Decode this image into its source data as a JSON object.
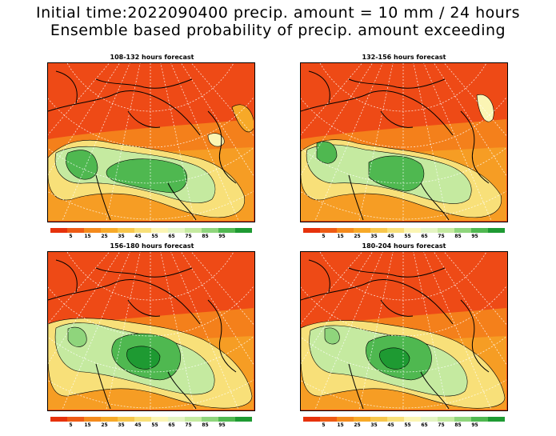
{
  "title_line1": "Initial time:2022090400 precip. amount = 10 mm / 24 hours",
  "title_line2": "Ensemble based probability of precip. amount exceeding",
  "panels": [
    {
      "title": "108-132 hours forecast"
    },
    {
      "title": "132-156 hours forecast"
    },
    {
      "title": "156-180 hours forecast"
    },
    {
      "title": "180-204 hours forecast"
    }
  ],
  "colorbar": {
    "colors": [
      "#e6310b",
      "#ee5a14",
      "#f48a1c",
      "#f7a928",
      "#f7c64b",
      "#f8e079",
      "#fbf5b4",
      "#e4f4c2",
      "#c5eaa0",
      "#8fd57c",
      "#4fb850",
      "#1e9a32"
    ],
    "labels": [
      "5",
      "15",
      "25",
      "35",
      "45",
      "55",
      "65",
      "75",
      "85",
      "95"
    ]
  }
}
